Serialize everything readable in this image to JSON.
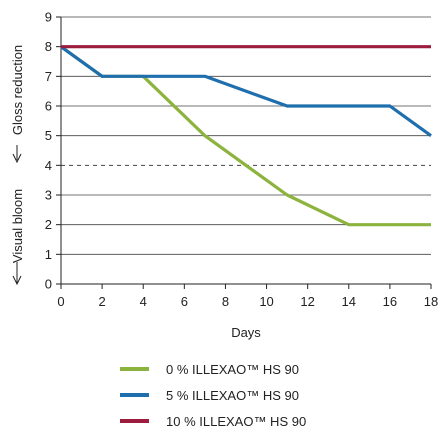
{
  "chart_data": {
    "type": "line",
    "xlabel": "Days",
    "ylabel_upper": "Gloss reduction",
    "ylabel_lower": "Visual bloom",
    "xlim": [
      0,
      18
    ],
    "ylim": [
      0,
      9
    ],
    "x_ticks": [
      0,
      2,
      4,
      6,
      8,
      10,
      12,
      14,
      16,
      18
    ],
    "y_ticks": [
      0,
      1,
      2,
      3,
      4,
      5,
      6,
      7,
      8,
      9
    ],
    "grid": "horizontal",
    "threshold_line": 4,
    "legend_position": "bottom",
    "series": [
      {
        "name": "0 % ILLEXAO™ HS 90",
        "color": "#8db33f",
        "points": [
          [
            0,
            8
          ],
          [
            2,
            7
          ],
          [
            4,
            7
          ],
          [
            7,
            5
          ],
          [
            11,
            3
          ],
          [
            14,
            2
          ],
          [
            18,
            2
          ]
        ]
      },
      {
        "name": "5 % ILLEXAO™ HS 90",
        "color": "#1f6fae",
        "points": [
          [
            0,
            8
          ],
          [
            2,
            7
          ],
          [
            7,
            7
          ],
          [
            11,
            6
          ],
          [
            16,
            6
          ],
          [
            18,
            5
          ]
        ]
      },
      {
        "name": "10 % ILLEXAO™ HS 90",
        "color": "#9b1c3d",
        "points": [
          [
            0,
            8
          ],
          [
            18,
            8
          ]
        ]
      }
    ]
  }
}
